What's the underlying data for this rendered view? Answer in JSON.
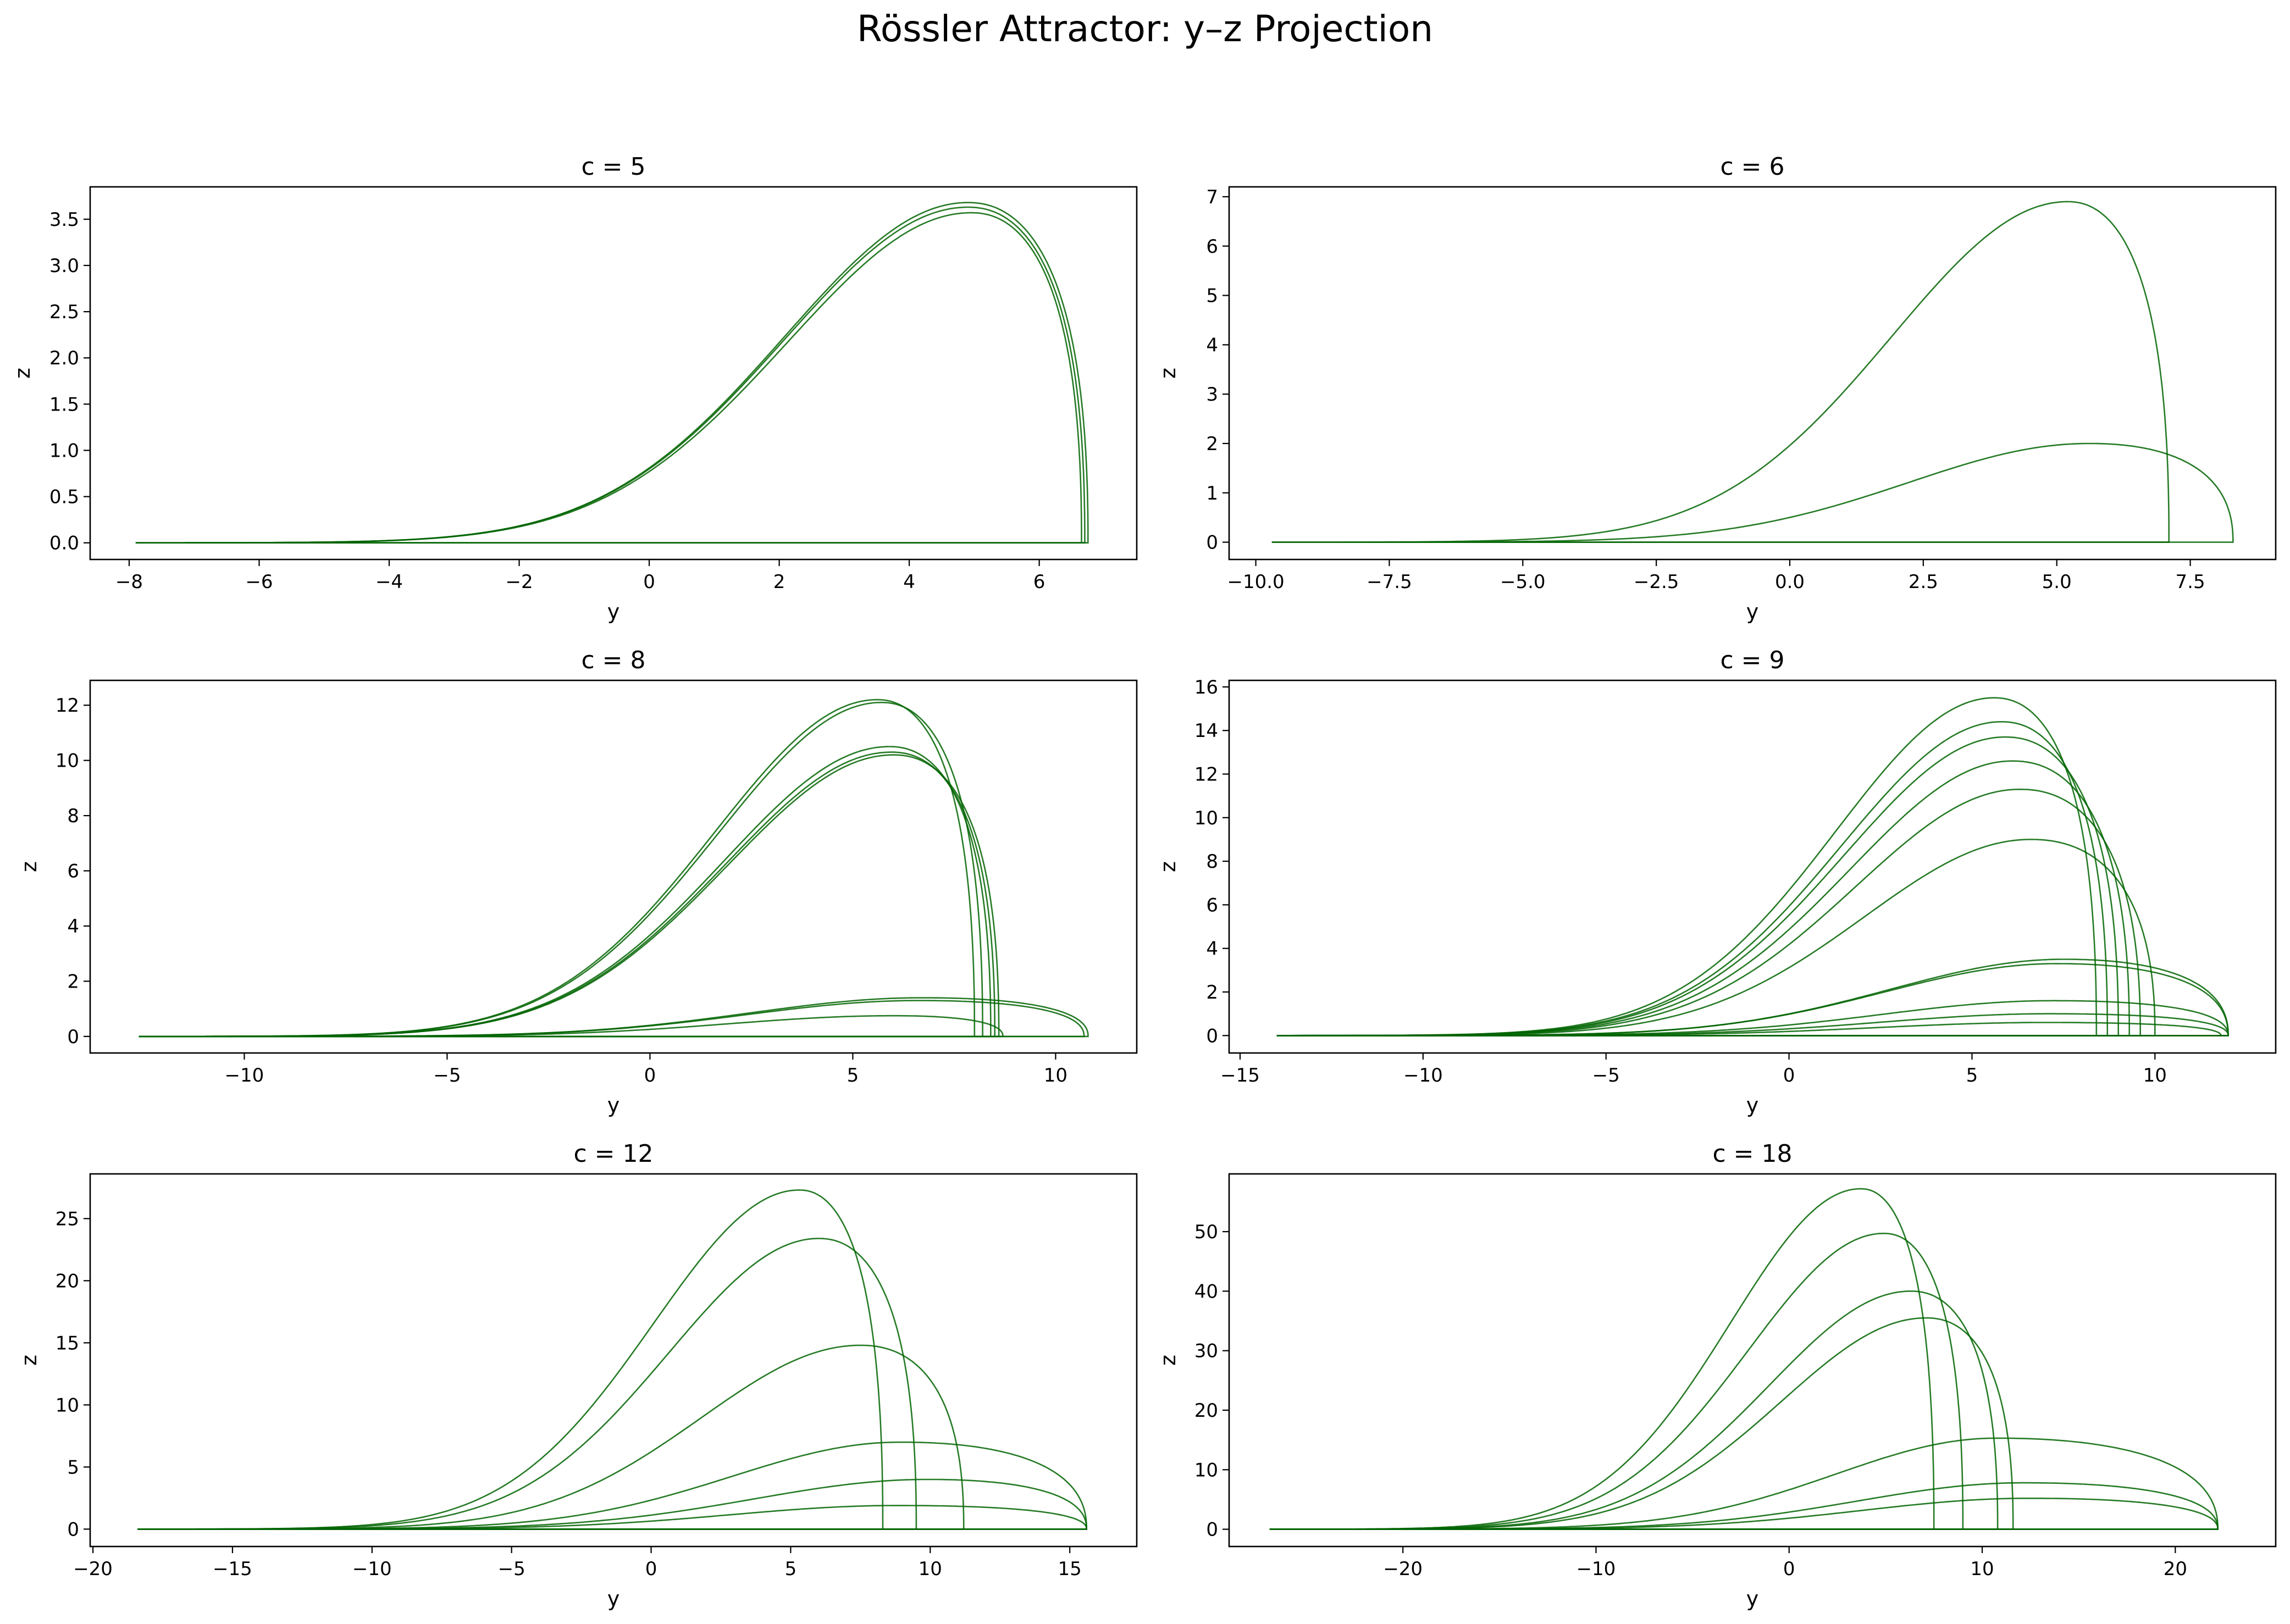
{
  "figure": {
    "title": "Rössler Attractor: y–z Projection",
    "line_color": "#006400"
  },
  "chart_data": [
    {
      "type": "line",
      "title": "c = 5",
      "xlabel": "y",
      "ylabel": "z",
      "xlim": [
        -8.6,
        7.5
      ],
      "ylim": [
        -0.18,
        3.85
      ],
      "xticks": [
        -8,
        -6,
        -4,
        -2,
        0,
        2,
        4,
        6
      ],
      "xtick_labels": [
        "−8",
        "−6",
        "−4",
        "−2",
        "0",
        "2",
        "4",
        "6"
      ],
      "yticks": [
        0.0,
        0.5,
        1.0,
        1.5,
        2.0,
        2.5,
        3.0,
        3.5
      ],
      "ytick_labels": [
        "0.0",
        "0.5",
        "1.0",
        "1.5",
        "2.0",
        "2.5",
        "3.0",
        "3.5"
      ],
      "series": [
        {
          "y_min": -7.9,
          "y_max": 6.75,
          "z_peak": 3.68,
          "y_peak": 4.9
        },
        {
          "y_min": -7.9,
          "y_max": 6.7,
          "z_peak": 3.63,
          "y_peak": 4.9
        },
        {
          "y_min": -7.9,
          "y_max": 6.65,
          "z_peak": 3.57,
          "y_peak": 4.95
        }
      ]
    },
    {
      "type": "line",
      "title": "c = 6",
      "xlabel": "y",
      "ylabel": "z",
      "xlim": [
        -10.5,
        9.1
      ],
      "ylim": [
        -0.35,
        7.2
      ],
      "xticks": [
        -10.0,
        -7.5,
        -5.0,
        -2.5,
        0.0,
        2.5,
        5.0,
        7.5
      ],
      "xtick_labels": [
        "−10.0",
        "−7.5",
        "−5.0",
        "−2.5",
        "0.0",
        "2.5",
        "5.0",
        "7.5"
      ],
      "yticks": [
        0,
        1,
        2,
        3,
        4,
        5,
        6,
        7
      ],
      "ytick_labels": [
        "0",
        "1",
        "2",
        "3",
        "4",
        "5",
        "6",
        "7"
      ],
      "series": [
        {
          "y_min": -9.7,
          "y_max": 7.1,
          "z_peak": 6.9,
          "y_peak": 5.2
        },
        {
          "y_min": -9.7,
          "y_max": 8.3,
          "z_peak": 2.0,
          "y_peak": 5.6
        }
      ]
    },
    {
      "type": "line",
      "title": "c = 8",
      "xlabel": "y",
      "ylabel": "z",
      "xlim": [
        -13.8,
        12.0
      ],
      "ylim": [
        -0.6,
        12.9
      ],
      "xticks": [
        -10,
        -5,
        0,
        5,
        10
      ],
      "xtick_labels": [
        "−10",
        "−5",
        "0",
        "5",
        "10"
      ],
      "yticks": [
        0,
        2,
        4,
        6,
        8,
        10,
        12
      ],
      "ytick_labels": [
        "0",
        "2",
        "4",
        "6",
        "8",
        "10",
        "12"
      ],
      "series": [
        {
          "y_min": -12.6,
          "y_max": 8.0,
          "z_peak": 12.2,
          "y_peak": 5.6
        },
        {
          "y_min": -12.6,
          "y_max": 8.2,
          "z_peak": 12.1,
          "y_peak": 5.7
        },
        {
          "y_min": -12.6,
          "y_max": 8.4,
          "z_peak": 10.5,
          "y_peak": 5.9
        },
        {
          "y_min": -12.6,
          "y_max": 8.5,
          "z_peak": 10.3,
          "y_peak": 5.95
        },
        {
          "y_min": -12.6,
          "y_max": 8.6,
          "z_peak": 10.2,
          "y_peak": 6.0
        },
        {
          "y_min": -12.6,
          "y_max": 10.8,
          "z_peak": 1.4,
          "y_peak": 6.7
        },
        {
          "y_min": -12.6,
          "y_max": 10.7,
          "z_peak": 1.3,
          "y_peak": 6.6
        },
        {
          "y_min": -12.6,
          "y_max": 8.7,
          "z_peak": 0.75,
          "y_peak": 6.0
        }
      ]
    },
    {
      "type": "line",
      "title": "c = 9",
      "xlabel": "y",
      "ylabel": "z",
      "xlim": [
        -15.3,
        13.3
      ],
      "ylim": [
        -0.8,
        16.3
      ],
      "xticks": [
        -15,
        -10,
        -5,
        0,
        5,
        10
      ],
      "xtick_labels": [
        "−15",
        "−10",
        "−5",
        "0",
        "5",
        "10"
      ],
      "yticks": [
        0,
        2,
        4,
        6,
        8,
        10,
        12,
        14,
        16
      ],
      "ytick_labels": [
        "0",
        "2",
        "4",
        "6",
        "8",
        "10",
        "12",
        "14",
        "16"
      ],
      "series": [
        {
          "y_min": -14.0,
          "y_max": 8.4,
          "z_peak": 15.5,
          "y_peak": 5.6
        },
        {
          "y_min": -14.0,
          "y_max": 8.7,
          "z_peak": 14.4,
          "y_peak": 5.8
        },
        {
          "y_min": -14.0,
          "y_max": 9.0,
          "z_peak": 13.7,
          "y_peak": 5.9
        },
        {
          "y_min": -14.0,
          "y_max": 9.3,
          "z_peak": 12.6,
          "y_peak": 6.1
        },
        {
          "y_min": -14.0,
          "y_max": 9.6,
          "z_peak": 11.3,
          "y_peak": 6.3
        },
        {
          "y_min": -14.0,
          "y_max": 10.0,
          "z_peak": 9.0,
          "y_peak": 6.6
        },
        {
          "y_min": -14.0,
          "y_max": 12.0,
          "z_peak": 3.5,
          "y_peak": 7.5
        },
        {
          "y_min": -14.0,
          "y_max": 12.0,
          "z_peak": 3.3,
          "y_peak": 7.3
        },
        {
          "y_min": -14.0,
          "y_max": 12.0,
          "z_peak": 1.6,
          "y_peak": 7.2
        },
        {
          "y_min": -14.0,
          "y_max": 12.0,
          "z_peak": 1.0,
          "y_peak": 7.1
        },
        {
          "y_min": -14.0,
          "y_max": 11.8,
          "z_peak": 0.6,
          "y_peak": 7.0
        }
      ]
    },
    {
      "type": "line",
      "title": "c = 12",
      "xlabel": "y",
      "ylabel": "z",
      "xlim": [
        -20.1,
        17.4
      ],
      "ylim": [
        -1.4,
        28.6
      ],
      "xticks": [
        -20,
        -15,
        -10,
        -5,
        0,
        5,
        10,
        15
      ],
      "xtick_labels": [
        "−20",
        "−15",
        "−10",
        "−5",
        "0",
        "5",
        "10",
        "15"
      ],
      "yticks": [
        0,
        5,
        10,
        15,
        20,
        25
      ],
      "ytick_labels": [
        "0",
        "5",
        "10",
        "15",
        "20",
        "25"
      ],
      "series": [
        {
          "y_min": -18.4,
          "y_max": 8.3,
          "z_peak": 27.3,
          "y_peak": 5.3
        },
        {
          "y_min": -18.4,
          "y_max": 9.5,
          "z_peak": 23.4,
          "y_peak": 6.0
        },
        {
          "y_min": -18.4,
          "y_max": 11.2,
          "z_peak": 14.8,
          "y_peak": 7.5
        },
        {
          "y_min": -18.4,
          "y_max": 15.6,
          "z_peak": 7.0,
          "y_peak": 8.9
        },
        {
          "y_min": -18.4,
          "y_max": 15.6,
          "z_peak": 4.0,
          "y_peak": 9.9
        },
        {
          "y_min": -18.4,
          "y_max": 15.6,
          "z_peak": 1.9,
          "y_peak": 8.8
        }
      ]
    },
    {
      "type": "line",
      "title": "c = 18",
      "xlabel": "y",
      "ylabel": "z",
      "xlim": [
        -29.0,
        25.2
      ],
      "ylim": [
        -2.9,
        59.7
      ],
      "xticks": [
        -20,
        -10,
        0,
        10,
        20
      ],
      "xtick_labels": [
        "−20",
        "−10",
        "0",
        "10",
        "20"
      ],
      "yticks": [
        0,
        10,
        20,
        30,
        40,
        50
      ],
      "ytick_labels": [
        "0",
        "10",
        "20",
        "30",
        "40",
        "50"
      ],
      "series": [
        {
          "y_min": -26.9,
          "y_max": 7.5,
          "z_peak": 57.2,
          "y_peak": 3.7
        },
        {
          "y_min": -26.9,
          "y_max": 9.0,
          "z_peak": 49.7,
          "y_peak": 4.9
        },
        {
          "y_min": -26.9,
          "y_max": 10.8,
          "z_peak": 40.0,
          "y_peak": 6.3
        },
        {
          "y_min": -26.9,
          "y_max": 11.6,
          "z_peak": 35.5,
          "y_peak": 7.1
        },
        {
          "y_min": -26.9,
          "y_max": 22.2,
          "z_peak": 15.3,
          "y_peak": 10.7
        },
        {
          "y_min": -26.9,
          "y_max": 22.2,
          "z_peak": 7.8,
          "y_peak": 12.1
        },
        {
          "y_min": -26.9,
          "y_max": 22.2,
          "z_peak": 5.2,
          "y_peak": 12.4
        }
      ]
    }
  ]
}
